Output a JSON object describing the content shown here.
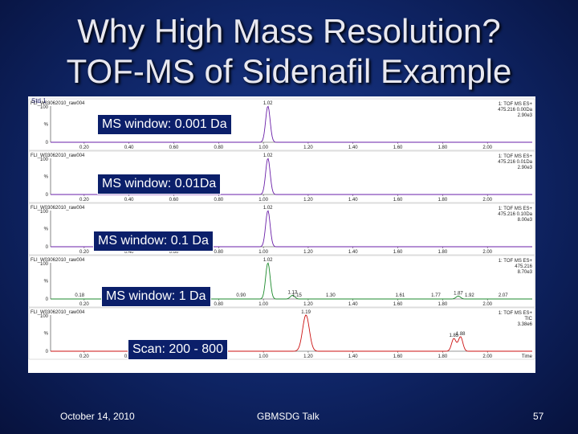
{
  "slide": {
    "title_line1": "Why High Mass Resolution?",
    "title_line2": "TOF-MS of Sidenafil Example",
    "footer_date": "October 14, 2010",
    "footer_center": "GBMSDG Talk",
    "page_number": "57"
  },
  "chart_data": {
    "type": "line",
    "panel_header": "Std 1",
    "xlabel": "Time",
    "xlim": [
      0.05,
      2.2
    ],
    "x_ticks": [
      "0.20",
      "0.40",
      "0.60",
      "0.80",
      "1.00",
      "1.20",
      "1.40",
      "1.60",
      "1.80",
      "2.00"
    ],
    "x_tick_values": [
      0.2,
      0.4,
      0.6,
      0.8,
      1.0,
      1.2,
      1.4,
      1.6,
      1.8,
      2.0
    ],
    "y_ticks": [
      "100",
      "%",
      "0"
    ],
    "traces": [
      {
        "name": "MS window: 0.001 Da",
        "file": "FLI_W03062010_raw004",
        "info": [
          "1: TOF MS ES+",
          "475.216 0.00Da",
          "2.90e3"
        ],
        "color": "#6a1fa8",
        "peaks": [
          {
            "x": 1.02,
            "h": 1.0,
            "w": 0.01
          }
        ],
        "annotations": [
          {
            "x": 1.02,
            "text": "1.02"
          }
        ]
      },
      {
        "name": "MS window: 0.01Da",
        "file": "FLI_W03062010_raw004",
        "info": [
          "1: TOF MS ES+",
          "475.216 0.01Da",
          "2.90e3"
        ],
        "color": "#6a1fa8",
        "peaks": [
          {
            "x": 1.02,
            "h": 1.0,
            "w": 0.01
          }
        ],
        "annotations": [
          {
            "x": 1.02,
            "text": "1.02"
          }
        ]
      },
      {
        "name": "MS window: 0.1 Da",
        "file": "FLI_W03062010_raw004",
        "info": [
          "1: TOF MS ES+",
          "475.216 0.10Da",
          "8.00e3"
        ],
        "color": "#6a1fa8",
        "peaks": [
          {
            "x": 1.02,
            "h": 1.0,
            "w": 0.01
          }
        ],
        "annotations": [
          {
            "x": 1.02,
            "text": "1.02"
          }
        ]
      },
      {
        "name": "MS window: 1 Da",
        "file": "FLI_W03062010_raw004",
        "info": [
          "1: TOF MS ES+",
          "475.216",
          "8.70e3"
        ],
        "color": "#1c8a2c",
        "peaks": [
          {
            "x": 1.02,
            "h": 1.0,
            "w": 0.01
          },
          {
            "x": 1.13,
            "h": 0.1,
            "w": 0.01
          },
          {
            "x": 1.87,
            "h": 0.08,
            "w": 0.01
          }
        ],
        "annotations": [
          {
            "x": 1.02,
            "text": "1.02"
          },
          {
            "x": 0.18,
            "text": "0.18"
          },
          {
            "x": 0.9,
            "text": "0.90"
          },
          {
            "x": 1.15,
            "text": "1.15"
          },
          {
            "x": 1.13,
            "text": "1.13"
          },
          {
            "x": 1.3,
            "text": "1.30"
          },
          {
            "x": 1.61,
            "text": "1.61"
          },
          {
            "x": 1.77,
            "text": "1.77"
          },
          {
            "x": 1.87,
            "text": "1.87"
          },
          {
            "x": 1.92,
            "text": "1.92"
          },
          {
            "x": 2.07,
            "text": "2.07"
          }
        ]
      },
      {
        "name": "Scan: 200 - 800",
        "file": "FLI_W03062010_raw004",
        "info": [
          "1: TOF MS ES+",
          "TIC",
          "3.38e6"
        ],
        "color": "#cc1111",
        "peaks": [
          {
            "x": 1.19,
            "h": 1.0,
            "w": 0.015
          },
          {
            "x": 1.85,
            "h": 0.35,
            "w": 0.01
          },
          {
            "x": 1.88,
            "h": 0.4,
            "w": 0.01
          }
        ],
        "annotations": [
          {
            "x": 1.19,
            "text": "1.19"
          },
          {
            "x": 1.85,
            "text": "1.85"
          },
          {
            "x": 1.88,
            "text": "1.88"
          }
        ]
      }
    ]
  }
}
